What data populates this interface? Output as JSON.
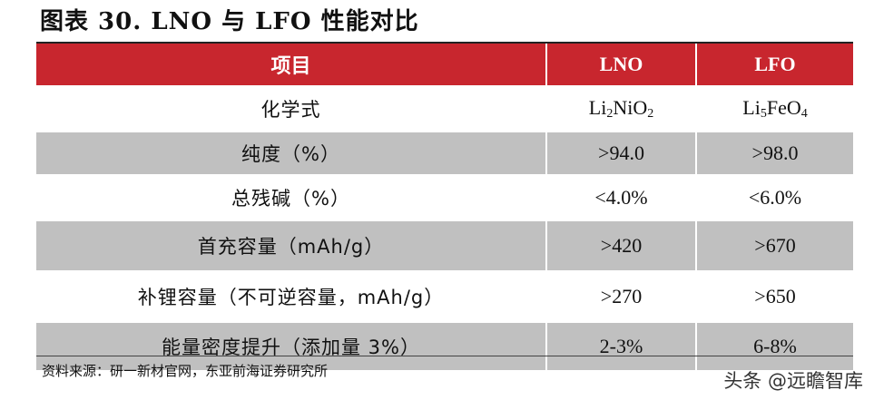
{
  "title": "图表 30. LNO 与 LFO 性能对比",
  "headers": [
    "项目",
    "LNO",
    "LFO"
  ],
  "rows": [
    {
      "label": "化学式",
      "lno_formula": {
        "p1": "Li",
        "s1": "2",
        "p2": "NiO",
        "s2": "2"
      },
      "lfo_formula": {
        "p1": "Li",
        "s1": "5",
        "p2": "FeO",
        "s2": "4"
      }
    },
    {
      "label": "纯度（%）",
      "lno": ">94.0",
      "lfo": ">98.0"
    },
    {
      "label": "总残碱（%）",
      "lno": "<4.0%",
      "lfo": "<6.0%"
    },
    {
      "label": "首充容量（mAh/g）",
      "lno": ">420",
      "lfo": ">670"
    },
    {
      "label": "补锂容量（不可逆容量，mAh/g）",
      "lno": ">270",
      "lfo": ">650"
    },
    {
      "label": "能量密度提升（添加量 3%）",
      "lno": "2-3%",
      "lfo": "6-8%"
    }
  ],
  "source": "资料来源：研一新材官网，东亚前海证券研究所",
  "watermark": "头条 @远瞻智库",
  "colors": {
    "header_bg": "#c8262e",
    "shade_bg": "#c0c0c0"
  }
}
